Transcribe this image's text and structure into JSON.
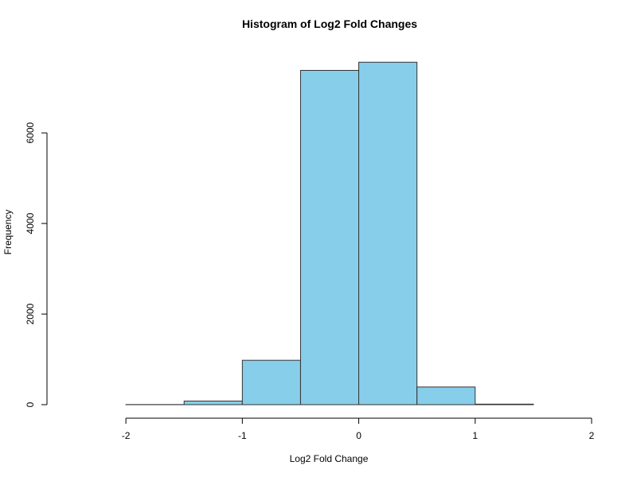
{
  "chart_data": {
    "type": "bar",
    "title": "Histogram of Log2 Fold Changes",
    "xlabel": "Log2 Fold Change",
    "ylabel": "Frequency",
    "bins": [
      {
        "start": -2.5,
        "end": -2.0,
        "value": 0
      },
      {
        "start": -2.0,
        "end": -1.5,
        "value": 3
      },
      {
        "start": -1.5,
        "end": -1.0,
        "value": 80
      },
      {
        "start": -1.0,
        "end": -0.5,
        "value": 980
      },
      {
        "start": -0.5,
        "end": 0.0,
        "value": 7380
      },
      {
        "start": 0.0,
        "end": 0.5,
        "value": 7560
      },
      {
        "start": 0.5,
        "end": 1.0,
        "value": 390
      },
      {
        "start": 1.0,
        "end": 1.5,
        "value": 12
      },
      {
        "start": 1.5,
        "end": 2.0,
        "value": 0
      }
    ],
    "xlim": [
      -2.5,
      2.0
    ],
    "ylim": [
      0,
      7600
    ],
    "x_ticks": [
      -2,
      -1,
      0,
      1,
      2
    ],
    "x_tick_labels": [
      "-2",
      "-1",
      "0",
      "1",
      "2"
    ],
    "y_ticks": [
      0,
      2000,
      4000,
      6000
    ],
    "y_tick_labels": [
      "0",
      "2000",
      "4000",
      "6000"
    ],
    "grid": false,
    "colors": {
      "bar_fill": "#87CEEB",
      "bar_stroke": "#333333",
      "axis": "#000000"
    }
  }
}
